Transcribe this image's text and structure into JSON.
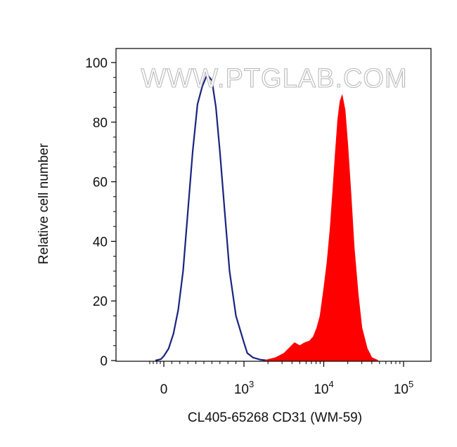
{
  "watermark": "WWW.PTGLAB.COM",
  "chart_data": {
    "type": "area",
    "xlabel": "CL405-65268 CD31 (WM-59)",
    "ylabel": "Relative cell number",
    "xscale": "biexponential",
    "xlim": [
      -300,
      130000
    ],
    "ylim": [
      0,
      100
    ],
    "x_ticks": [
      {
        "value": 0,
        "base": "0",
        "exp": ""
      },
      {
        "value": 1000,
        "base": "10",
        "exp": "3"
      },
      {
        "value": 10000,
        "base": "10",
        "exp": "4"
      },
      {
        "value": 100000,
        "base": "10",
        "exp": "5"
      }
    ],
    "y_ticks": [
      {
        "value": 0,
        "label": "0"
      },
      {
        "value": 20,
        "label": "20"
      },
      {
        "value": 40,
        "label": "40"
      },
      {
        "value": 60,
        "label": "60"
      },
      {
        "value": 80,
        "label": "80"
      },
      {
        "value": 100,
        "label": "100"
      }
    ],
    "series": [
      {
        "name": "",
        "style": "outline",
        "color": "#1a237e",
        "x": [
          -120,
          -40,
          0,
          60,
          120,
          180,
          240,
          300,
          360,
          420,
          480,
          540,
          600,
          650,
          700,
          760,
          820,
          900,
          1000,
          1100,
          1300,
          1600,
          2000
        ],
        "y": [
          0,
          0.5,
          1.5,
          4,
          9,
          17,
          30,
          50,
          70,
          86,
          92,
          96,
          94,
          85,
          70,
          50,
          30,
          15,
          6,
          2.5,
          1,
          0.3,
          0
        ]
      },
      {
        "name": "",
        "style": "filled",
        "color": "#ff0000",
        "x": [
          1800,
          2500,
          3200,
          3800,
          4300,
          5000,
          5800,
          6600,
          7400,
          8200,
          9000,
          10000,
          11000,
          12000,
          13000,
          14000,
          15000,
          16000,
          17000,
          18500,
          20000,
          22000,
          24000,
          27000,
          30000,
          35000,
          40000,
          48000
        ],
        "y": [
          0,
          1,
          2.5,
          4.5,
          6,
          5,
          6,
          6.5,
          8,
          11,
          15,
          24,
          33,
          44,
          57,
          70,
          81,
          87,
          89,
          84,
          72,
          55,
          38,
          22,
          11,
          4,
          1,
          0
        ]
      }
    ]
  }
}
